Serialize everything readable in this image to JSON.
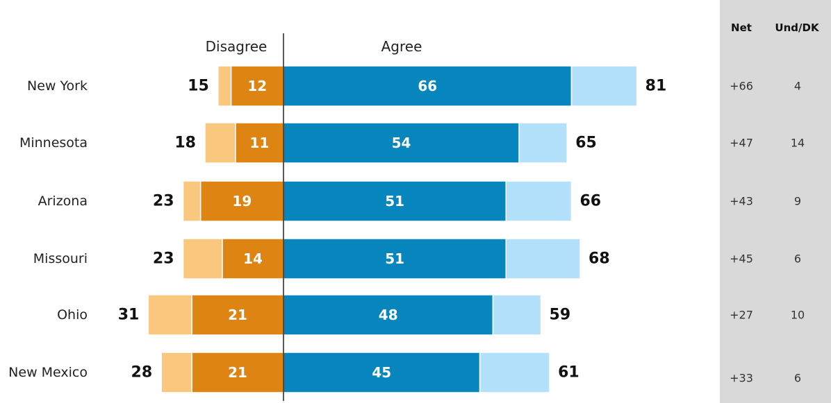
{
  "chart_data": {
    "type": "bar",
    "orientation": "horizontal-diverging",
    "header_disagree": "Disagree",
    "header_agree": "Agree",
    "column_net": "Net",
    "column_und": "Und/DK",
    "categories": [
      "New York",
      "Minnesota",
      "Arizona",
      "Missouri",
      "Ohio",
      "New Mexico"
    ],
    "disagree_total": [
      15,
      18,
      23,
      23,
      31,
      28
    ],
    "disagree_strong": [
      12,
      11,
      19,
      14,
      21,
      21
    ],
    "agree_strong": [
      66,
      54,
      51,
      51,
      48,
      45
    ],
    "agree_total": [
      81,
      65,
      66,
      68,
      59,
      61
    ],
    "net": [
      "+66",
      "+47",
      "+43",
      "+45",
      "+27",
      "+33"
    ],
    "und_dk": [
      "4",
      "14",
      "9",
      "6",
      "10",
      "6"
    ],
    "colors": {
      "disagree_strong": "#de8412",
      "disagree_light": "#fac77f",
      "agree_strong": "#0786bd",
      "agree_light": "#b3e0fb",
      "side_panel": "#d9d9d9"
    }
  }
}
